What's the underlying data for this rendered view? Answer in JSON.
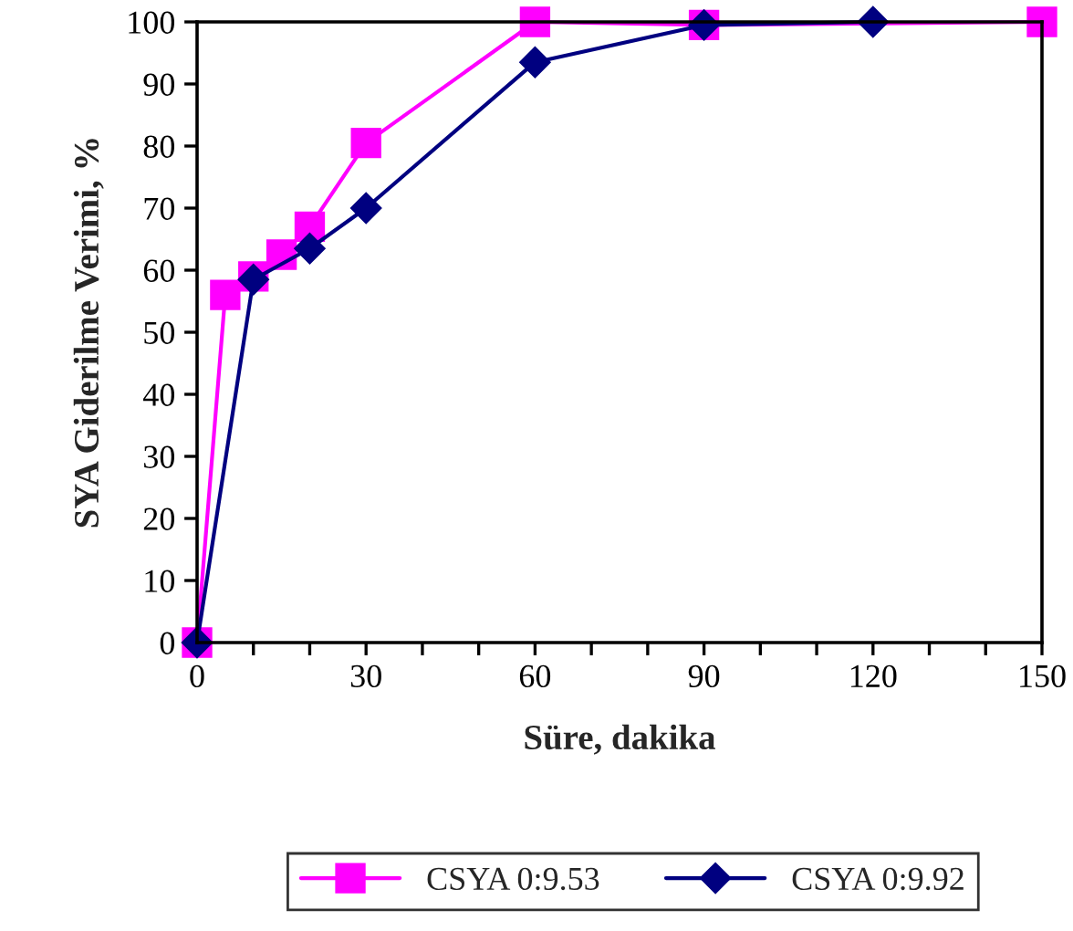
{
  "chart_data": {
    "type": "line",
    "xlabel": "Süre, dakika",
    "ylabel": "SYA Giderilme Verimi, %",
    "series": [
      {
        "name": "CSYA 0:9.53",
        "color": "#ff00ff",
        "marker": "square",
        "x": [
          0,
          5,
          10,
          15,
          20,
          30,
          60,
          90,
          150
        ],
        "values": [
          0,
          56,
          59,
          62.5,
          67,
          80.5,
          100,
          99.5,
          100
        ]
      },
      {
        "name": "CSYA 0:9.92",
        "color": "#000080",
        "marker": "diamond",
        "x": [
          0,
          10,
          20,
          30,
          60,
          90,
          120
        ],
        "values": [
          0,
          58.5,
          63.5,
          70,
          93.5,
          99.5,
          100
        ]
      }
    ],
    "xlim": [
      0,
      150
    ],
    "ylim": [
      0,
      100
    ],
    "xticks": [
      0,
      {
        "value": 10,
        "label": null
      },
      {
        "value": 20,
        "label": null
      },
      30,
      {
        "value": 40,
        "label": null
      },
      {
        "value": 50,
        "label": null
      },
      60,
      {
        "value": 70,
        "label": null
      },
      {
        "value": 80,
        "label": null
      },
      90,
      {
        "value": 100,
        "label": null
      },
      {
        "value": 110,
        "label": null
      },
      120,
      {
        "value": 130,
        "label": null
      },
      {
        "value": 140,
        "label": null
      },
      150
    ],
    "yticks": [
      0,
      10,
      20,
      30,
      40,
      50,
      60,
      70,
      80,
      90,
      100
    ],
    "grid": false,
    "legend": "bottom",
    "line_style": "solid"
  }
}
